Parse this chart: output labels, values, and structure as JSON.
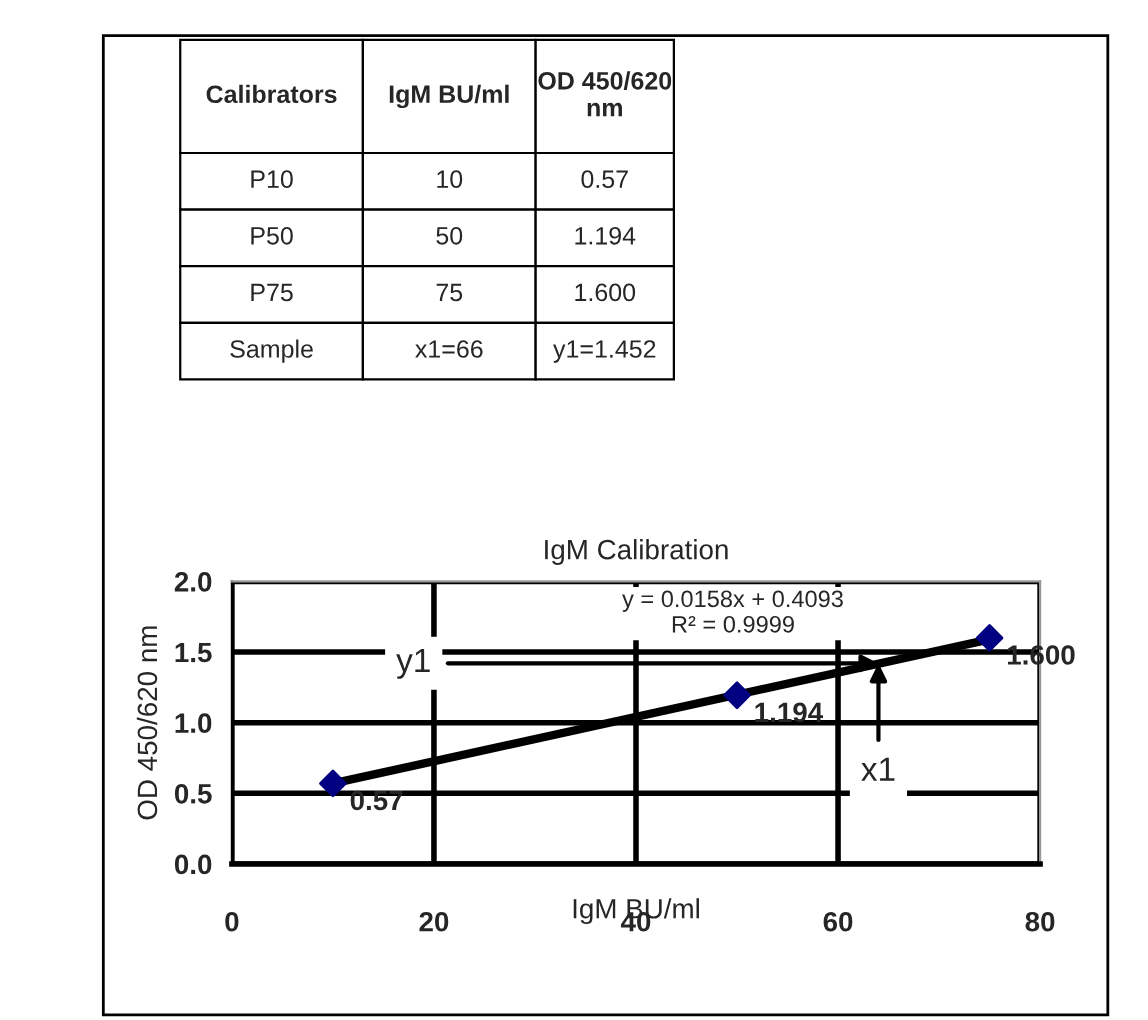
{
  "chart_data": [
    {
      "type": "other",
      "categories": [
        "Calibrators",
        "IgM BU/ml",
        "OD 450/620 nm"
      ],
      "y_categories": [
        "P10",
        "P50",
        "P75",
        "Sample"
      ],
      "cell_labels": [
        [
          "10",
          "0.57"
        ],
        [
          "50",
          "1.194"
        ],
        [
          "75",
          "1.600"
        ],
        [
          "x1=66",
          "y1=1.452"
        ]
      ]
    },
    {
      "type": "scatter",
      "title": "IgM Calibration",
      "xlabel": "IgM BU/ml",
      "ylabel": "OD 450/620 nm",
      "xlim": [
        0,
        80
      ],
      "xticks": [
        0,
        20,
        40,
        60,
        80
      ],
      "ylim": [
        0,
        2
      ],
      "yticks": [
        {
          "value": 0,
          "label": "0.0"
        },
        {
          "value": 0.5,
          "label": "0.5"
        },
        {
          "value": 1,
          "label": "1.0"
        },
        {
          "value": 1.5,
          "label": "1.5"
        },
        {
          "value": 2,
          "label": "2.0"
        }
      ],
      "grid": true,
      "series": [
        {
          "type": "scatter",
          "marker": "diamond",
          "color": "#000080",
          "x": [
            10,
            50,
            75
          ],
          "values": [
            0.57,
            1.194,
            1.6
          ],
          "value_labels": [
            "0.57",
            "1.194",
            "1.600"
          ]
        },
        {
          "type": "line",
          "color": "#000000",
          "x": [
            10,
            75
          ],
          "values": [
            0.57,
            1.59
          ]
        }
      ],
      "annotations": [
        "y = 0.0158x + 0.4093",
        "R² = 0.9999",
        {
          "text": "y1",
          "x": 64,
          "y": 1.42
        },
        {
          "text": "x1",
          "x": 64,
          "y": 1.42
        }
      ]
    }
  ]
}
